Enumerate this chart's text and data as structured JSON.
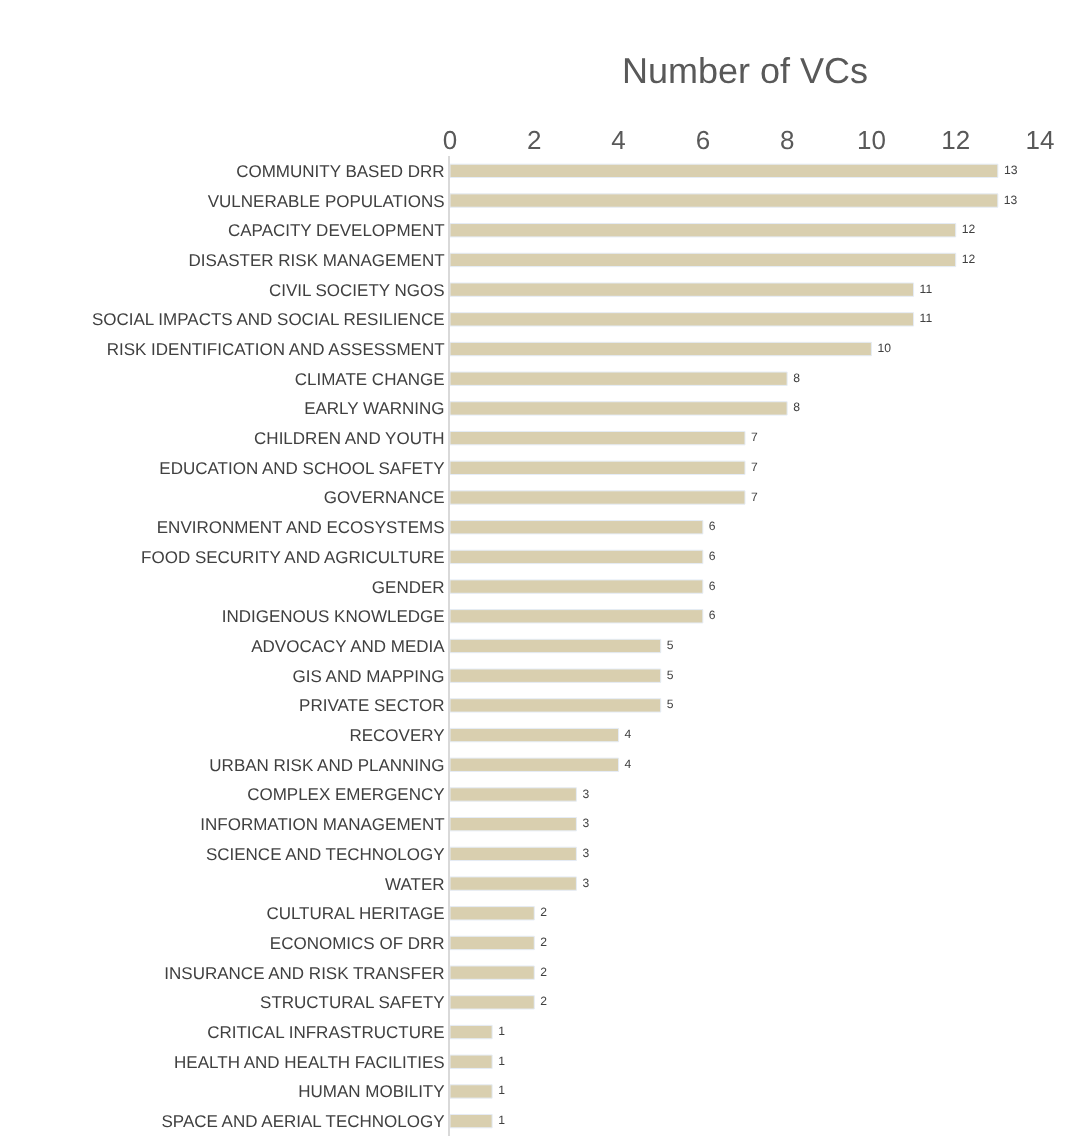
{
  "chart_data": {
    "type": "bar",
    "orientation": "horizontal",
    "xlabel": "Number of VCs",
    "categories": [
      "COMMUNITY BASED DRR",
      "VULNERABLE POPULATIONS",
      "CAPACITY DEVELOPMENT",
      "DISASTER RISK MANAGEMENT",
      "CIVIL SOCIETY NGOS",
      "SOCIAL IMPACTS AND SOCIAL RESILIENCE",
      "RISK IDENTIFICATION AND ASSESSMENT",
      "CLIMATE CHANGE",
      "EARLY WARNING",
      "CHILDREN AND YOUTH",
      "EDUCATION AND SCHOOL SAFETY",
      "GOVERNANCE",
      "ENVIRONMENT AND ECOSYSTEMS",
      "FOOD SECURITY AND AGRICULTURE",
      "GENDER",
      "INDIGENOUS KNOWLEDGE",
      "ADVOCACY AND MEDIA",
      "GIS AND MAPPING",
      "PRIVATE SECTOR",
      "RECOVERY",
      "URBAN RISK AND PLANNING",
      "COMPLEX EMERGENCY",
      "INFORMATION MANAGEMENT",
      "SCIENCE AND TECHNOLOGY",
      "WATER",
      "CULTURAL HERITAGE",
      "ECONOMICS OF DRR",
      "INSURANCE AND RISK TRANSFER",
      "STRUCTURAL SAFETY",
      "CRITICAL INFRASTRUCTURE",
      "HEALTH AND HEALTH FACILITIES",
      "HUMAN MOBILITY",
      "SPACE AND AERIAL TECHNOLOGY"
    ],
    "values": [
      13,
      13,
      12,
      12,
      11,
      11,
      10,
      8,
      8,
      7,
      7,
      7,
      6,
      6,
      6,
      6,
      5,
      5,
      5,
      4,
      4,
      3,
      3,
      3,
      3,
      2,
      2,
      2,
      2,
      1,
      1,
      1,
      1
    ],
    "color": "#d9cfaf",
    "xlim": [
      0,
      14
    ],
    "xticks": [
      0,
      2,
      4,
      6,
      8,
      10,
      12,
      14
    ],
    "data_labels": true
  }
}
